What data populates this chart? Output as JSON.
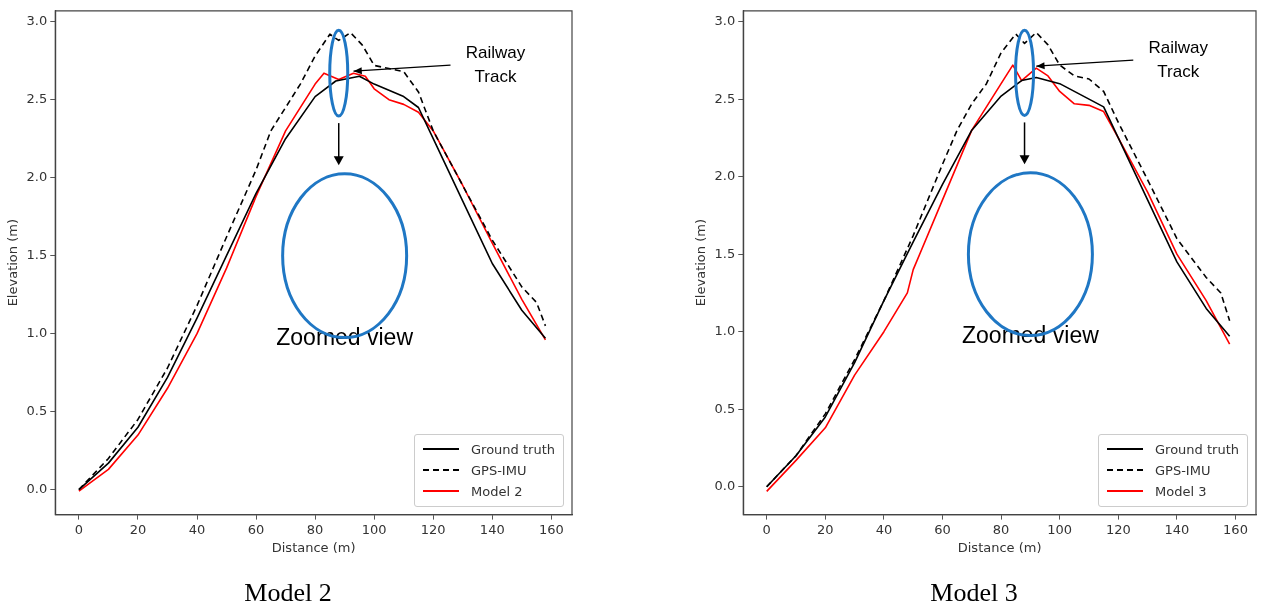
{
  "chart_data": [
    {
      "type": "line",
      "title": "Model 2",
      "xlabel": "Distance (m)",
      "ylabel": "Elevation (m)",
      "xlim": [
        -8,
        167
      ],
      "xticks": [
        0,
        20,
        40,
        60,
        80,
        100,
        120,
        140,
        160
      ],
      "ylim": [
        -0.16,
        3.07
      ],
      "yticks": [
        {
          "value": 0,
          "label": "0.0"
        },
        {
          "value": 0.5,
          "label": "0.5"
        },
        {
          "value": 1,
          "label": "1.0"
        },
        {
          "value": 1.5,
          "label": "1.5"
        },
        {
          "value": 2,
          "label": "2.0"
        },
        {
          "value": 2.5,
          "label": "2.5"
        },
        {
          "value": 3,
          "label": "3.0"
        }
      ],
      "grid": false,
      "legend": "bottom right",
      "marker": "none",
      "annotations": [
        {
          "text": "Railway Track",
          "x": 93,
          "y": 2.67
        },
        "Zoomed view"
      ],
      "series": [
        {
          "name": "Ground truth",
          "color": "#000000",
          "line_style": "solid",
          "x": [
            0,
            10,
            20,
            30,
            40,
            50,
            60,
            70,
            80,
            87,
            95,
            100,
            110,
            115,
            120,
            130,
            140,
            150,
            158
          ],
          "values": [
            0,
            0.17,
            0.4,
            0.72,
            1.1,
            1.5,
            1.9,
            2.25,
            2.52,
            2.62,
            2.65,
            2.6,
            2.52,
            2.45,
            2.25,
            1.85,
            1.45,
            1.15,
            0.97
          ]
        },
        {
          "name": "GPS-IMU",
          "color": "#000000",
          "line_style": "dashed",
          "x": [
            0,
            10,
            20,
            30,
            40,
            50,
            60,
            65,
            70,
            75,
            80,
            85,
            88,
            92,
            96,
            100,
            105,
            110,
            115,
            120,
            130,
            140,
            150,
            155,
            158
          ],
          "values": [
            0,
            0.2,
            0.45,
            0.78,
            1.18,
            1.62,
            2.05,
            2.3,
            2.45,
            2.6,
            2.78,
            2.92,
            2.88,
            2.93,
            2.85,
            2.72,
            2.7,
            2.68,
            2.55,
            2.3,
            1.95,
            1.6,
            1.3,
            1.2,
            1.05
          ]
        },
        {
          "name": "Model 2",
          "color": "#ff0000",
          "line_style": "solid",
          "x": [
            0,
            10,
            20,
            30,
            40,
            50,
            60,
            70,
            80,
            83,
            88,
            93,
            97,
            100,
            105,
            110,
            115,
            120,
            130,
            140,
            150,
            158
          ],
          "values": [
            -0.01,
            0.13,
            0.35,
            0.65,
            1.0,
            1.42,
            1.88,
            2.3,
            2.6,
            2.67,
            2.63,
            2.67,
            2.65,
            2.57,
            2.5,
            2.47,
            2.42,
            2.3,
            1.95,
            1.58,
            1.22,
            0.96
          ]
        }
      ]
    },
    {
      "type": "line",
      "title": "Model 3",
      "xlabel": "Distance (m)",
      "ylabel": "Elevation (m)",
      "xlim": [
        -8,
        167
      ],
      "xticks": [
        0,
        20,
        40,
        60,
        80,
        100,
        120,
        140,
        160
      ],
      "ylim": [
        -0.18,
        3.07
      ],
      "yticks": [
        {
          "value": 0,
          "label": "0.0"
        },
        {
          "value": 0.5,
          "label": "0.5"
        },
        {
          "value": 1,
          "label": "1.0"
        },
        {
          "value": 1.5,
          "label": "1.5"
        },
        {
          "value": 2,
          "label": "2.0"
        },
        {
          "value": 2.5,
          "label": "2.5"
        },
        {
          "value": 3,
          "label": "3.0"
        }
      ],
      "grid": false,
      "legend": "bottom right",
      "marker": "none",
      "annotations": [
        {
          "text": "Railway Track",
          "x": 92,
          "y": 2.7
        },
        "Zoomed view"
      ],
      "series": [
        {
          "name": "Ground truth",
          "color": "#000000",
          "line_style": "solid",
          "x": [
            0,
            10,
            20,
            30,
            40,
            50,
            60,
            70,
            80,
            87,
            92,
            100,
            110,
            115,
            120,
            130,
            140,
            150,
            158
          ],
          "values": [
            0,
            0.2,
            0.45,
            0.8,
            1.2,
            1.58,
            1.95,
            2.3,
            2.52,
            2.62,
            2.64,
            2.6,
            2.5,
            2.45,
            2.25,
            1.85,
            1.45,
            1.15,
            0.97
          ]
        },
        {
          "name": "GPS-IMU",
          "color": "#000000",
          "line_style": "dashed",
          "x": [
            0,
            10,
            20,
            30,
            40,
            50,
            60,
            65,
            70,
            75,
            80,
            85,
            88,
            92,
            96,
            100,
            105,
            110,
            115,
            120,
            130,
            140,
            150,
            155,
            158
          ],
          "values": [
            0,
            0.2,
            0.47,
            0.82,
            1.2,
            1.62,
            2.08,
            2.3,
            2.47,
            2.6,
            2.8,
            2.92,
            2.86,
            2.93,
            2.85,
            2.72,
            2.65,
            2.63,
            2.55,
            2.35,
            1.98,
            1.6,
            1.35,
            1.25,
            1.07
          ]
        },
        {
          "name": "Model 3",
          "color": "#ff0000",
          "line_style": "solid",
          "x": [
            0,
            10,
            20,
            30,
            40,
            48,
            50,
            60,
            70,
            80,
            84,
            87,
            92,
            96,
            100,
            105,
            110,
            115,
            120,
            130,
            140,
            150,
            158
          ],
          "values": [
            -0.03,
            0.17,
            0.38,
            0.72,
            1.0,
            1.25,
            1.4,
            1.85,
            2.3,
            2.6,
            2.72,
            2.62,
            2.7,
            2.65,
            2.55,
            2.47,
            2.46,
            2.42,
            2.25,
            1.9,
            1.5,
            1.2,
            0.92
          ]
        }
      ]
    }
  ]
}
